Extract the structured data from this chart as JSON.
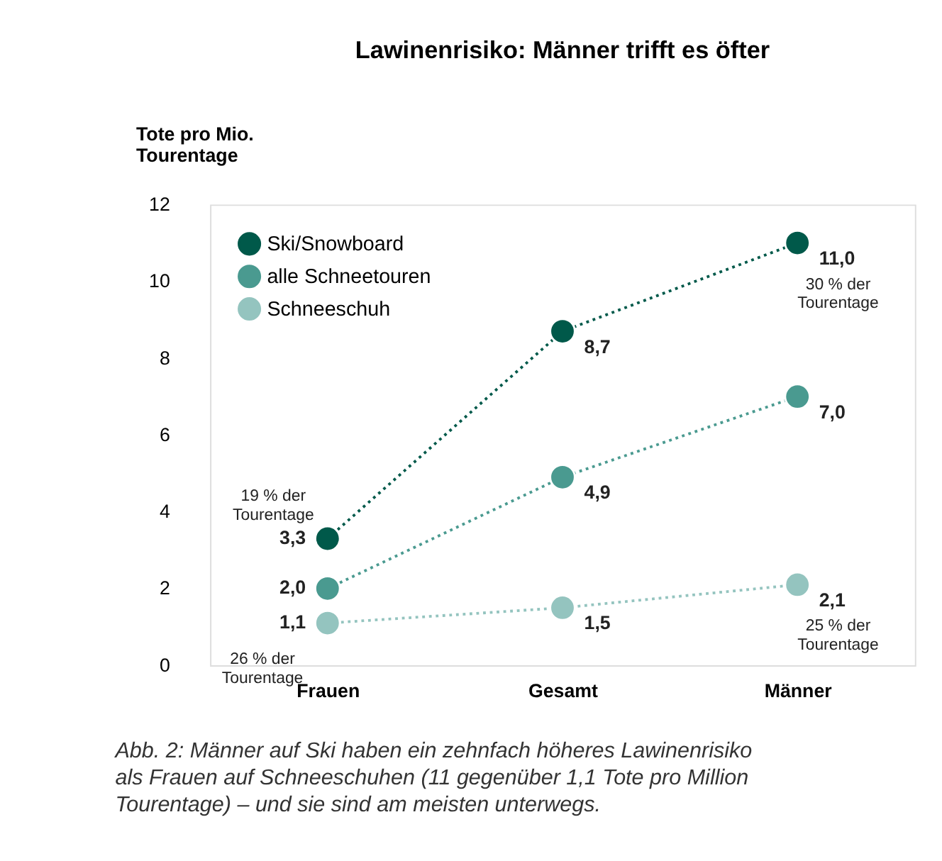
{
  "chart_data": {
    "type": "line",
    "title": "Lawinenrisiko: Männer trifft es öfter",
    "ylabel": "Tote pro Mio.\nTourentage",
    "categories": [
      "Frauen",
      "Gesamt",
      "Männer"
    ],
    "series": [
      {
        "name": "Ski/Snowboard",
        "color": "#00594a",
        "values": [
          3.3,
          8.7,
          11.0
        ],
        "value_labels": [
          "3,3",
          "8,7",
          "11,0"
        ]
      },
      {
        "name": "alle Schneetouren",
        "color": "#4a9a90",
        "values": [
          2.0,
          4.9,
          7.0
        ],
        "value_labels": [
          "2,0",
          "4,9",
          "7,0"
        ]
      },
      {
        "name": "Schneeschuh",
        "color": "#94c4bf",
        "values": [
          1.1,
          1.5,
          2.1
        ],
        "value_labels": [
          "1,1",
          "1,5",
          "2,1"
        ]
      }
    ],
    "ylim": [
      0,
      12
    ],
    "yticks": [
      0,
      2,
      4,
      6,
      8,
      10,
      12
    ],
    "grid": false,
    "legend": "top left",
    "marker": "circle",
    "line_style": "dotted",
    "annotations": [
      {
        "text": "19 % der\nTourentage",
        "x": "Frauen",
        "y": 3.3
      },
      {
        "text": "26 % der\nTourentage",
        "x": "Frauen",
        "y": 1.1
      },
      {
        "text": "30 % der\nTourentage",
        "x": "Männer",
        "y": 11.0
      },
      {
        "text": "25 % der\nTourentage",
        "x": "Männer",
        "y": 2.1
      },
      "Abb. 2: Männer auf Ski haben ein zehnfach höheres Lawinenrisiko\nals Frauen auf Schneeschuhen (11 gegenüber 1,1 Tote pro Million\nTourentage) – und sie sind am meisten unterwegs."
    ]
  }
}
